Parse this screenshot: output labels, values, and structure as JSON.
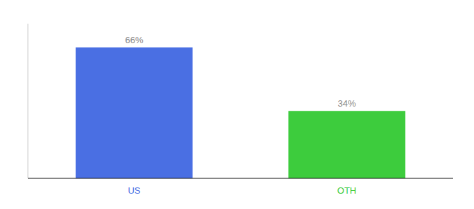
{
  "chart_data": {
    "type": "bar",
    "categories": [
      "US",
      "OTH"
    ],
    "values": [
      66,
      34
    ],
    "value_labels": [
      "66%",
      "34%"
    ],
    "colors": [
      "#4a6fe3",
      "#3dcc3d"
    ],
    "ylim": [
      0,
      78
    ],
    "data_labels": true,
    "tick_labels": "x"
  }
}
